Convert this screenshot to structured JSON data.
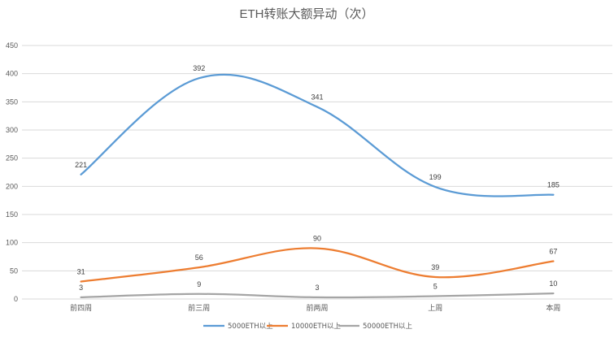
{
  "chart_data": {
    "type": "line",
    "title": "ETH转账大额异动（次）",
    "categories": [
      "前四周",
      "前三周",
      "前两周",
      "上周",
      "本周"
    ],
    "ylim": [
      0,
      450
    ],
    "yticks": [
      0,
      50,
      100,
      150,
      200,
      250,
      300,
      350,
      400,
      450
    ],
    "grid": true,
    "legend_position": "bottom",
    "series": [
      {
        "name": "5000ETH以上",
        "values": [
          221,
          392,
          341,
          199,
          185
        ],
        "color": "#5b9bd5"
      },
      {
        "name": "10000ETH以上",
        "values": [
          31,
          56,
          90,
          39,
          67
        ],
        "color": "#ed7d31"
      },
      {
        "name": "50000ETH以上",
        "values": [
          3,
          9,
          3,
          5,
          10
        ],
        "color": "#a5a5a5"
      }
    ]
  }
}
